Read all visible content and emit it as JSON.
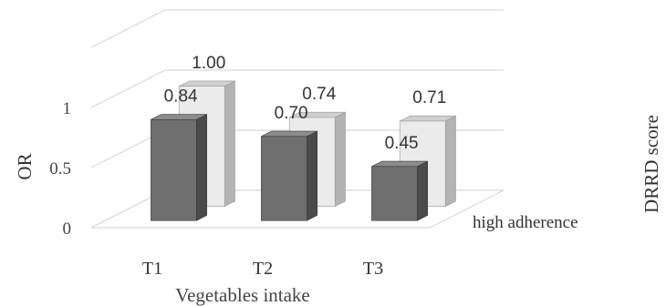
{
  "chart_data": {
    "type": "bar",
    "style": "3d-clustered",
    "categories": [
      "T1",
      "T2",
      "T3"
    ],
    "series": [
      {
        "values": [
          0.84,
          0.7,
          0.45
        ],
        "color": "#6d6d6d"
      },
      {
        "name": "high adherence",
        "values": [
          1.0,
          0.74,
          0.71
        ],
        "color": "#e6e6e6"
      }
    ],
    "data_labels": {
      "front": [
        "0.84",
        "0.70",
        "0.45"
      ],
      "back": [
        "1.00",
        "0.74",
        "0.71"
      ]
    },
    "xlabel": "Vegetables intake",
    "ylabel": "OR",
    "depth_label": "DRRD score",
    "yticks": [
      "0",
      "0.5",
      "1"
    ],
    "ylim": [
      0,
      1.5
    ],
    "grid": true,
    "legend": "none"
  }
}
